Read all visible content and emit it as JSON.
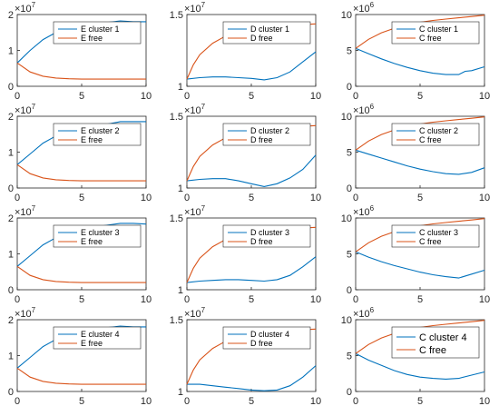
{
  "colors": {
    "cluster": "#0072BD",
    "free": "#D95319",
    "axis": "#262626"
  },
  "chart_data": [
    {
      "type": "line",
      "row": 1,
      "col": 1,
      "ylim": [
        0,
        20000000
      ],
      "xlim": [
        0,
        10
      ],
      "yticks": [
        "0",
        "1",
        "2"
      ],
      "xticks": [
        "0",
        "5",
        "10"
      ],
      "multiplier": {
        "base": "×10",
        "exp": "7"
      },
      "series": [
        {
          "name": "E cluster 1",
          "x": [
            0,
            1,
            2,
            3,
            4,
            5,
            6,
            7,
            7.5,
            8,
            9,
            10
          ],
          "y": [
            6500000,
            10000000,
            13000000,
            15000000,
            16500000,
            17000000,
            17500000,
            17800000,
            18000000,
            18200000,
            18000000,
            18000000
          ]
        },
        {
          "name": "E free",
          "x": [
            0,
            1,
            2,
            3,
            4,
            5,
            6,
            7,
            8,
            9,
            10
          ],
          "y": [
            6500000,
            4000000,
            2800000,
            2300000,
            2100000,
            2000000,
            2000000,
            2000000,
            2000000,
            2000000,
            2000000
          ]
        }
      ]
    },
    {
      "type": "line",
      "row": 1,
      "col": 2,
      "ylim": [
        10000000,
        15000000
      ],
      "xlim": [
        0,
        10
      ],
      "yticks": [
        "1",
        "1.5"
      ],
      "xticks": [
        "0",
        "5",
        "10"
      ],
      "multiplier": {
        "base": "×10",
        "exp": "7"
      },
      "series": [
        {
          "name": "D cluster 1",
          "x": [
            0,
            1,
            2,
            3,
            4,
            5,
            6,
            7,
            8,
            9,
            10
          ],
          "y": [
            10500000,
            10600000,
            10650000,
            10650000,
            10600000,
            10550000,
            10450000,
            10600000,
            11000000,
            11700000,
            12400000
          ]
        },
        {
          "name": "D free",
          "x": [
            0,
            0.5,
            1,
            2,
            3,
            4,
            5,
            6,
            7,
            8,
            9,
            10
          ],
          "y": [
            10500000,
            11500000,
            12200000,
            13000000,
            13500000,
            13800000,
            14000000,
            14100000,
            14200000,
            14250000,
            14300000,
            14350000
          ]
        }
      ]
    },
    {
      "type": "line",
      "row": 1,
      "col": 3,
      "ylim": [
        0,
        11000000
      ],
      "xlim": [
        0,
        10
      ],
      "yticks": [
        "0",
        "5",
        "10"
      ],
      "xticks": [
        "0",
        "5",
        "10"
      ],
      "multiplier": {
        "base": "×10",
        "exp": "6"
      },
      "series": [
        {
          "name": "C cluster 1",
          "x": [
            0,
            1,
            2,
            3,
            4,
            5,
            6,
            7,
            8,
            8.5,
            9,
            10
          ],
          "y": [
            5800000,
            5000000,
            4200000,
            3500000,
            2900000,
            2400000,
            2000000,
            1800000,
            1800000,
            2300000,
            2400000,
            3000000
          ]
        },
        {
          "name": "C free",
          "x": [
            0,
            1,
            2,
            3,
            4,
            5,
            6,
            7,
            8,
            9,
            10
          ],
          "y": [
            5800000,
            7200000,
            8200000,
            8900000,
            9400000,
            9800000,
            10100000,
            10300000,
            10500000,
            10700000,
            10900000
          ]
        }
      ]
    },
    {
      "type": "line",
      "row": 2,
      "col": 1,
      "ylim": [
        0,
        20000000
      ],
      "xlim": [
        0,
        10
      ],
      "yticks": [
        "0",
        "1",
        "2"
      ],
      "xticks": [
        "0",
        "5",
        "10"
      ],
      "multiplier": {
        "base": "×10",
        "exp": "7"
      },
      "series": [
        {
          "name": "E cluster 2",
          "x": [
            0,
            1,
            2,
            3,
            4,
            5,
            6,
            7,
            8,
            9,
            10
          ],
          "y": [
            6500000,
            9500000,
            12500000,
            14500000,
            16000000,
            17000000,
            17500000,
            17800000,
            18500000,
            18500000,
            18500000
          ]
        },
        {
          "name": "E free",
          "x": [
            0,
            1,
            2,
            3,
            4,
            5,
            6,
            7,
            8,
            9,
            10
          ],
          "y": [
            6500000,
            4000000,
            2800000,
            2300000,
            2100000,
            2000000,
            2000000,
            2000000,
            2000000,
            2000000,
            2000000
          ]
        }
      ]
    },
    {
      "type": "line",
      "row": 2,
      "col": 2,
      "ylim": [
        10000000,
        15000000
      ],
      "xlim": [
        0,
        10
      ],
      "yticks": [
        "1",
        "1.5"
      ],
      "xticks": [
        "0",
        "5",
        "10"
      ],
      "multiplier": {
        "base": "×10",
        "exp": "7"
      },
      "series": [
        {
          "name": "D cluster 2",
          "x": [
            0,
            1,
            2,
            3,
            4,
            5,
            6,
            7,
            8,
            9,
            10
          ],
          "y": [
            10500000,
            10600000,
            10650000,
            10650000,
            10500000,
            10300000,
            10100000,
            10300000,
            10700000,
            11300000,
            12300000
          ]
        },
        {
          "name": "D free",
          "x": [
            0,
            0.5,
            1,
            2,
            3,
            4,
            5,
            6,
            7,
            8,
            9,
            10
          ],
          "y": [
            10500000,
            11500000,
            12200000,
            13000000,
            13500000,
            13800000,
            14000000,
            14100000,
            14200000,
            14250000,
            14300000,
            14350000
          ]
        }
      ]
    },
    {
      "type": "line",
      "row": 2,
      "col": 3,
      "ylim": [
        0,
        11000000
      ],
      "xlim": [
        0,
        10
      ],
      "yticks": [
        "0",
        "5",
        "10"
      ],
      "xticks": [
        "0",
        "5",
        "10"
      ],
      "multiplier": {
        "base": "×10",
        "exp": "6"
      },
      "series": [
        {
          "name": "C cluster 2",
          "x": [
            0,
            1,
            2,
            3,
            4,
            5,
            6,
            7,
            8,
            9,
            10
          ],
          "y": [
            5800000,
            5200000,
            4600000,
            4000000,
            3400000,
            2900000,
            2500000,
            2200000,
            2100000,
            2400000,
            3100000
          ]
        },
        {
          "name": "C free",
          "x": [
            0,
            1,
            2,
            3,
            4,
            5,
            6,
            7,
            8,
            9,
            10
          ],
          "y": [
            5800000,
            7200000,
            8200000,
            8900000,
            9400000,
            9800000,
            10100000,
            10300000,
            10500000,
            10700000,
            10900000
          ]
        }
      ]
    },
    {
      "type": "line",
      "row": 3,
      "col": 1,
      "ylim": [
        0,
        20000000
      ],
      "xlim": [
        0,
        10
      ],
      "yticks": [
        "0",
        "1",
        "2"
      ],
      "xticks": [
        "0",
        "5",
        "10"
      ],
      "multiplier": {
        "base": "×10",
        "exp": "7"
      },
      "series": [
        {
          "name": "E cluster 3",
          "x": [
            0,
            1,
            2,
            3,
            4,
            5,
            6,
            7,
            8,
            9,
            10
          ],
          "y": [
            6500000,
            9500000,
            12500000,
            14500000,
            16000000,
            17000000,
            17500000,
            18000000,
            18500000,
            18500000,
            18300000
          ]
        },
        {
          "name": "E free",
          "x": [
            0,
            1,
            2,
            3,
            4,
            5,
            6,
            7,
            8,
            9,
            10
          ],
          "y": [
            6500000,
            4000000,
            2800000,
            2300000,
            2100000,
            2000000,
            2000000,
            2000000,
            2000000,
            2000000,
            2000000
          ]
        }
      ]
    },
    {
      "type": "line",
      "row": 3,
      "col": 2,
      "ylim": [
        10000000,
        15000000
      ],
      "xlim": [
        0,
        10
      ],
      "yticks": [
        "1",
        "1.5"
      ],
      "xticks": [
        "0",
        "5",
        "10"
      ],
      "multiplier": {
        "base": "×10",
        "exp": "7"
      },
      "series": [
        {
          "name": "D cluster 3",
          "x": [
            0,
            1,
            2,
            3,
            4,
            5,
            6,
            7,
            8,
            9,
            10
          ],
          "y": [
            10500000,
            10600000,
            10650000,
            10700000,
            10700000,
            10650000,
            10600000,
            10700000,
            11000000,
            11600000,
            12300000
          ]
        },
        {
          "name": "D free",
          "x": [
            0,
            0.5,
            1,
            2,
            3,
            4,
            5,
            6,
            7,
            8,
            9,
            10
          ],
          "y": [
            10500000,
            11500000,
            12200000,
            13000000,
            13500000,
            13800000,
            14000000,
            14100000,
            14200000,
            14250000,
            14300000,
            14350000
          ]
        }
      ]
    },
    {
      "type": "line",
      "row": 3,
      "col": 3,
      "ylim": [
        0,
        11000000
      ],
      "xlim": [
        0,
        10
      ],
      "yticks": [
        "0",
        "5",
        "10"
      ],
      "xticks": [
        "0",
        "5",
        "10"
      ],
      "multiplier": {
        "base": "×10",
        "exp": "6"
      },
      "series": [
        {
          "name": "C cluster 3",
          "x": [
            0,
            1,
            2,
            3,
            4,
            5,
            6,
            7,
            8,
            9,
            10
          ],
          "y": [
            5800000,
            5000000,
            4300000,
            3700000,
            3200000,
            2700000,
            2300000,
            2000000,
            1800000,
            2400000,
            3000000
          ]
        },
        {
          "name": "C free",
          "x": [
            0,
            1,
            2,
            3,
            4,
            5,
            6,
            7,
            8,
            9,
            10
          ],
          "y": [
            5800000,
            7200000,
            8200000,
            8900000,
            9400000,
            9800000,
            10100000,
            10300000,
            10500000,
            10700000,
            10900000
          ]
        }
      ]
    },
    {
      "type": "line",
      "row": 4,
      "col": 1,
      "ylim": [
        0,
        20000000
      ],
      "xlim": [
        0,
        10
      ],
      "yticks": [
        "0",
        "1",
        "2"
      ],
      "xticks": [
        "0",
        "5",
        "10"
      ],
      "multiplier": {
        "base": "×10",
        "exp": "7"
      },
      "series": [
        {
          "name": "E cluster 4",
          "x": [
            0,
            1,
            2,
            3,
            4,
            5,
            6,
            7,
            8,
            9,
            10
          ],
          "y": [
            6500000,
            9500000,
            12500000,
            14500000,
            16000000,
            17000000,
            17500000,
            17800000,
            18200000,
            18000000,
            18000000
          ]
        },
        {
          "name": "E free",
          "x": [
            0,
            1,
            2,
            3,
            4,
            5,
            6,
            7,
            8,
            9,
            10
          ],
          "y": [
            6500000,
            4000000,
            2800000,
            2300000,
            2100000,
            2000000,
            2000000,
            2000000,
            2000000,
            2000000,
            2000000
          ]
        }
      ]
    },
    {
      "type": "line",
      "row": 4,
      "col": 2,
      "ylim": [
        10000000,
        15000000
      ],
      "xlim": [
        0,
        10
      ],
      "yticks": [
        "1",
        "1.5"
      ],
      "xticks": [
        "0",
        "5",
        "10"
      ],
      "multiplier": {
        "base": "×10",
        "exp": "7"
      },
      "series": [
        {
          "name": "D cluster 4",
          "x": [
            0,
            1,
            2,
            3,
            4,
            5,
            6,
            7,
            8,
            9,
            10
          ],
          "y": [
            10500000,
            10500000,
            10400000,
            10300000,
            10200000,
            10100000,
            10050000,
            10100000,
            10400000,
            11000000,
            11800000
          ]
        },
        {
          "name": "D free",
          "x": [
            0,
            0.5,
            1,
            2,
            3,
            4,
            5,
            6,
            7,
            8,
            9,
            10
          ],
          "y": [
            10500000,
            11500000,
            12200000,
            13000000,
            13500000,
            13800000,
            14000000,
            14100000,
            14200000,
            14250000,
            14300000,
            14350000
          ]
        }
      ]
    },
    {
      "type": "line",
      "row": 4,
      "col": 3,
      "ylim": [
        0,
        11000000
      ],
      "xlim": [
        0,
        10
      ],
      "yticks": [
        "0",
        "5",
        "10"
      ],
      "xticks": [
        "0",
        "5",
        "10"
      ],
      "multiplier": {
        "base": "×10",
        "exp": "6"
      },
      "legend_large": true,
      "series": [
        {
          "name": "C cluster 4",
          "x": [
            0,
            1,
            2,
            3,
            4,
            5,
            6,
            7,
            8,
            9,
            10
          ],
          "y": [
            5800000,
            4800000,
            4000000,
            3200000,
            2600000,
            2200000,
            2000000,
            1900000,
            2000000,
            2500000,
            3000000
          ]
        },
        {
          "name": "C free",
          "x": [
            0,
            1,
            2,
            3,
            4,
            5,
            6,
            7,
            8,
            9,
            10
          ],
          "y": [
            5800000,
            7200000,
            8200000,
            8900000,
            9400000,
            9800000,
            10100000,
            10300000,
            10500000,
            10700000,
            10900000
          ]
        }
      ]
    }
  ]
}
